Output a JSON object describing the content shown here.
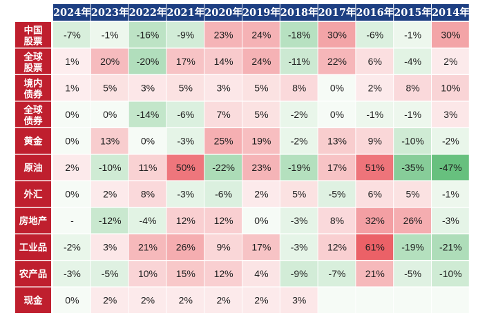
{
  "chart_data": {
    "type": "heatmap",
    "columns": [
      "2024年",
      "2023年",
      "2022年",
      "2021年",
      "2020年",
      "2019年",
      "2018年",
      "2017年",
      "2016年",
      "2015年",
      "2014年"
    ],
    "rows": [
      {
        "label": [
          "中国",
          "股票"
        ],
        "values": [
          "-7%",
          "-1%",
          "-16%",
          "-9%",
          "23%",
          "24%",
          "-18%",
          "30%",
          "-6%",
          "-1%",
          "30%"
        ]
      },
      {
        "label": [
          "全球",
          "股票"
        ],
        "values": [
          "1%",
          "20%",
          "-20%",
          "17%",
          "14%",
          "24%",
          "-11%",
          "22%",
          "6%",
          "-4%",
          "2%"
        ]
      },
      {
        "label": [
          "境内",
          "债券"
        ],
        "values": [
          "1%",
          "5%",
          "3%",
          "5%",
          "3%",
          "5%",
          "8%",
          "0%",
          "2%",
          "8%",
          "10%"
        ]
      },
      {
        "label": [
          "全球",
          "债券"
        ],
        "values": [
          "0%",
          "0%",
          "-14%",
          "-6%",
          "7%",
          "5%",
          "-2%",
          "0%",
          "-1%",
          "-1%",
          "3%"
        ]
      },
      {
        "label": [
          "黄金"
        ],
        "values": [
          "0%",
          "13%",
          "0%",
          "-3%",
          "25%",
          "19%",
          "-2%",
          "13%",
          "9%",
          "-10%",
          "-2%"
        ]
      },
      {
        "label": [
          "原油"
        ],
        "values": [
          "2%",
          "-10%",
          "11%",
          "50%",
          "-22%",
          "23%",
          "-19%",
          "17%",
          "51%",
          "-35%",
          "-47%"
        ]
      },
      {
        "label": [
          "外汇"
        ],
        "values": [
          "0%",
          "2%",
          "8%",
          "-3%",
          "-6%",
          "2%",
          "5%",
          "-5%",
          "6%",
          "5%",
          "-1%"
        ]
      },
      {
        "label": [
          "房地产"
        ],
        "values": [
          "-",
          "-12%",
          "-4%",
          "12%",
          "12%",
          "0%",
          "-3%",
          "8%",
          "32%",
          "26%",
          "-3%"
        ]
      },
      {
        "label": [
          "工业品"
        ],
        "values": [
          "-2%",
          "3%",
          "21%",
          "26%",
          "9%",
          "17%",
          "-3%",
          "12%",
          "61%",
          "-19%",
          "-21%"
        ]
      },
      {
        "label": [
          "农产品"
        ],
        "values": [
          "-3%",
          "-5%",
          "10%",
          "15%",
          "12%",
          "4%",
          "-9%",
          "-7%",
          "21%",
          "-5%",
          "-10%"
        ]
      },
      {
        "label": [
          "现金"
        ],
        "values": [
          "0%",
          "2%",
          "2%",
          "2%",
          "2%",
          "2%",
          "3%",
          "",
          "",
          "",
          ""
        ]
      }
    ],
    "color_scale": {
      "positive": "#e8474f",
      "negative": "#2fa84f",
      "neutral": "#f6fbf6"
    }
  },
  "theme": {
    "header_bg": "#1d3f82",
    "row_label_bg": "#bf1f2e",
    "grid_line": "#ffffff"
  }
}
